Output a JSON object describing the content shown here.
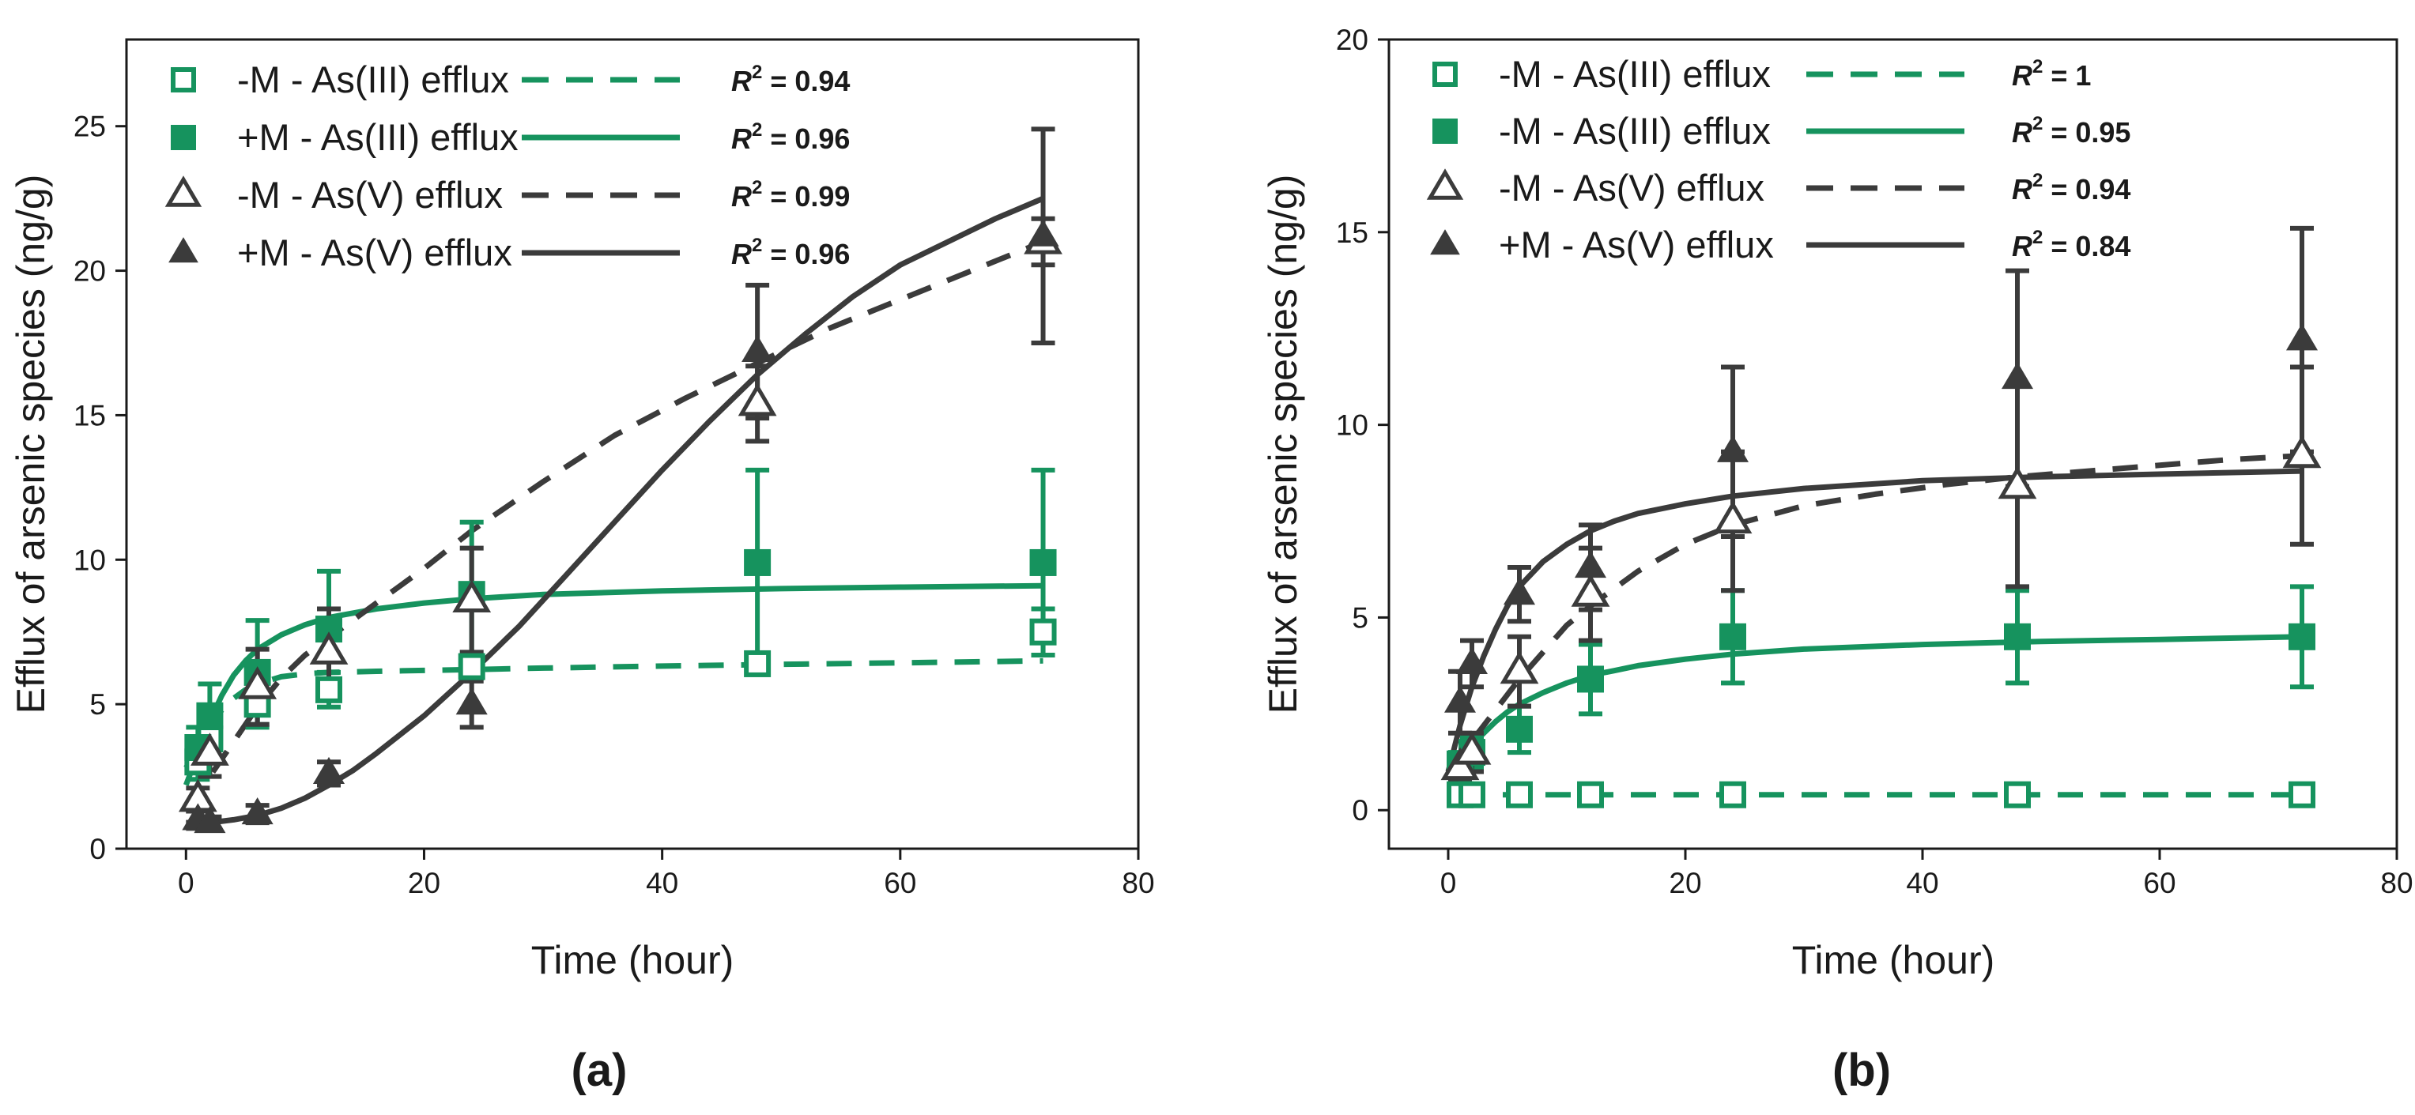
{
  "colors": {
    "green": "#16935e",
    "dark": "#3b3b3b"
  },
  "chart_data": [
    {
      "type": "scatter",
      "panel_label": "(a)",
      "xlabel": "Time (hour)",
      "ylabel": "Efflux of arsenic species (ng/g)",
      "xlim": [
        -5,
        80
      ],
      "ylim": [
        0,
        28
      ],
      "xticks": [
        0,
        20,
        40,
        60,
        80
      ],
      "yticks": [
        0,
        5,
        10,
        15,
        20,
        25
      ],
      "grid": false,
      "legend_position": "top-left",
      "series": [
        {
          "name": "-M - As(III) efflux",
          "r2_prefix": "R",
          "r2_exp": "2",
          "r2_value": " = 0.94",
          "color": "green",
          "marker": "square-open",
          "line": "dashed",
          "x": [
            1,
            2,
            6,
            12,
            24,
            48,
            72
          ],
          "y": [
            3.0,
            3.8,
            5.0,
            5.5,
            6.3,
            6.4,
            7.5
          ],
          "err": [
            0.6,
            0.6,
            0.8,
            0.6,
            0.4,
            0.2,
            0.8
          ],
          "fit_x": [
            0,
            1,
            2,
            3,
            4,
            5,
            6,
            8,
            10,
            12,
            14,
            16,
            20,
            24,
            30,
            40,
            50,
            60,
            72
          ],
          "fit_y": [
            2.8,
            3.5,
            4.2,
            4.8,
            5.2,
            5.5,
            5.7,
            5.95,
            6.05,
            6.1,
            6.12,
            6.14,
            6.17,
            6.2,
            6.25,
            6.32,
            6.38,
            6.43,
            6.5
          ]
        },
        {
          "name": "+M - As(III) efflux",
          "r2_prefix": "R",
          "r2_exp": "2",
          "r2_value": " = 0.96",
          "color": "green",
          "marker": "square-filled",
          "line": "solid",
          "x": [
            1,
            2,
            6,
            12,
            24,
            48,
            72
          ],
          "y": [
            3.5,
            4.6,
            6.1,
            7.6,
            8.8,
            9.9,
            9.9
          ],
          "err": [
            0.7,
            1.1,
            1.8,
            2.0,
            2.5,
            3.2,
            3.2
          ],
          "fit_x": [
            0,
            1,
            2,
            3,
            4,
            5,
            6,
            8,
            10,
            12,
            14,
            16,
            20,
            24,
            30,
            40,
            50,
            60,
            72
          ],
          "fit_y": [
            2.2,
            3.3,
            4.4,
            5.3,
            6.0,
            6.5,
            6.9,
            7.4,
            7.75,
            8.0,
            8.15,
            8.3,
            8.5,
            8.65,
            8.8,
            8.92,
            9.0,
            9.05,
            9.1
          ]
        },
        {
          "name": "-M - As(V) efflux",
          "r2_prefix": "R",
          "r2_exp": "2",
          "r2_value": " = 0.99",
          "color": "dark",
          "marker": "triangle-open",
          "line": "dashed",
          "x": [
            1,
            2,
            6,
            12,
            24,
            48,
            72
          ],
          "y": [
            1.7,
            3.3,
            5.6,
            6.8,
            8.6,
            15.4,
            21.0
          ],
          "err": [
            0.4,
            0.8,
            1.3,
            1.5,
            1.8,
            1.3,
            0.8
          ],
          "fit_x": [
            0,
            2,
            4,
            6,
            8,
            10,
            12,
            16,
            20,
            24,
            30,
            36,
            42,
            48,
            54,
            60,
            66,
            72
          ],
          "fit_y": [
            1.5,
            2.5,
            3.7,
            4.9,
            5.9,
            6.7,
            7.3,
            8.5,
            9.7,
            11.0,
            12.7,
            14.3,
            15.6,
            16.8,
            18.0,
            19.0,
            20.0,
            21.0
          ]
        },
        {
          "name": "+M -  As(V) efflux",
          "r2_prefix": "R",
          "r2_exp": "2",
          "r2_value": " = 0.96",
          "color": "dark",
          "marker": "triangle-filled",
          "line": "solid",
          "x": [
            1,
            2,
            6,
            12,
            24,
            48,
            72
          ],
          "y": [
            1.0,
            0.9,
            1.2,
            2.6,
            5.0,
            17.2,
            21.2
          ],
          "err": [
            0.3,
            0.2,
            0.3,
            0.4,
            0.8,
            2.3,
            3.7
          ],
          "fit_x": [
            0,
            2,
            4,
            6,
            8,
            10,
            12,
            14,
            16,
            18,
            20,
            24,
            28,
            32,
            36,
            40,
            44,
            48,
            52,
            56,
            60,
            64,
            68,
            72
          ],
          "fit_y": [
            0.9,
            0.9,
            1.0,
            1.15,
            1.4,
            1.75,
            2.2,
            2.7,
            3.3,
            3.95,
            4.6,
            6.1,
            7.7,
            9.5,
            11.3,
            13.1,
            14.8,
            16.4,
            17.8,
            19.1,
            20.2,
            21.0,
            21.8,
            22.5
          ]
        }
      ]
    },
    {
      "type": "scatter",
      "panel_label": "(b)",
      "xlabel": "Time (hour)",
      "ylabel": "Efflux of arsenic species (ng/g)",
      "xlim": [
        -5,
        80
      ],
      "ylim": [
        -1,
        20
      ],
      "xticks": [
        0,
        20,
        40,
        60,
        80
      ],
      "yticks": [
        0,
        5,
        10,
        15,
        20
      ],
      "grid": false,
      "legend_position": "top-left",
      "series": [
        {
          "name": "-M - As(III) efflux",
          "r2_prefix": "R",
          "r2_exp": "2",
          "r2_value": " = 1",
          "color": "green",
          "marker": "square-open",
          "line": "dashed",
          "x": [
            1,
            2,
            6,
            12,
            24,
            48,
            72
          ],
          "y": [
            0.4,
            0.4,
            0.4,
            0.4,
            0.4,
            0.4,
            0.4
          ],
          "err": [
            0.05,
            0.05,
            0.05,
            0.05,
            0.05,
            0.05,
            0.05
          ],
          "fit_x": [
            1,
            72
          ],
          "fit_y": [
            0.4,
            0.4
          ]
        },
        {
          "name": "-M - As(III) efflux",
          "r2_prefix": "R",
          "r2_exp": "2",
          "r2_value": " = 0.95",
          "color": "green",
          "marker": "square-filled",
          "line": "solid",
          "x": [
            1,
            2,
            6,
            12,
            24,
            48,
            72
          ],
          "y": [
            1.2,
            1.5,
            2.1,
            3.4,
            4.5,
            4.5,
            4.5
          ],
          "err": [
            0.3,
            0.4,
            0.6,
            0.9,
            1.2,
            1.2,
            1.3
          ],
          "fit_x": [
            0,
            1,
            2,
            3,
            4,
            5,
            6,
            8,
            10,
            12,
            14,
            16,
            20,
            24,
            30,
            40,
            50,
            60,
            72
          ],
          "fit_y": [
            1.0,
            1.35,
            1.7,
            2.0,
            2.3,
            2.55,
            2.75,
            3.05,
            3.3,
            3.5,
            3.62,
            3.75,
            3.92,
            4.05,
            4.18,
            4.3,
            4.38,
            4.43,
            4.5
          ]
        },
        {
          "name": "-M - As(V) efflux",
          "r2_prefix": "R",
          "r2_exp": "2",
          "r2_value": " = 0.94",
          "color": "dark",
          "marker": "triangle-open",
          "line": "dashed",
          "x": [
            1,
            2,
            6,
            12,
            24,
            48,
            72
          ],
          "y": [
            1.1,
            1.5,
            3.6,
            5.6,
            7.5,
            8.4,
            9.2
          ],
          "err": [
            0.3,
            0.5,
            0.9,
            1.2,
            1.8,
            2.6,
            2.3
          ],
          "fit_x": [
            0,
            2,
            4,
            6,
            8,
            10,
            12,
            16,
            20,
            24,
            30,
            36,
            42,
            48,
            54,
            60,
            66,
            72
          ],
          "fit_y": [
            1.0,
            1.8,
            2.6,
            3.4,
            4.1,
            4.8,
            5.3,
            6.2,
            6.9,
            7.4,
            7.9,
            8.2,
            8.45,
            8.65,
            8.8,
            8.95,
            9.1,
            9.2
          ]
        },
        {
          "name": "+M - As(V) efflux",
          "r2_prefix": "R",
          "r2_exp": "2",
          "r2_value": " = 0.84",
          "color": "dark",
          "marker": "triangle-filled",
          "line": "solid",
          "x": [
            1,
            2,
            6,
            12,
            24,
            48,
            72
          ],
          "y": [
            2.8,
            3.8,
            5.6,
            6.3,
            9.3,
            11.2,
            12.2
          ],
          "err": [
            0.8,
            0.6,
            0.7,
            1.1,
            2.2,
            2.8,
            2.9
          ],
          "fit_x": [
            0,
            1,
            2,
            3,
            4,
            5,
            6,
            8,
            10,
            12,
            14,
            16,
            20,
            24,
            30,
            40,
            50,
            60,
            72
          ],
          "fit_y": [
            1.0,
            2.2,
            3.2,
            4.0,
            4.7,
            5.3,
            5.8,
            6.45,
            6.9,
            7.25,
            7.5,
            7.7,
            7.95,
            8.15,
            8.35,
            8.55,
            8.65,
            8.72,
            8.8
          ]
        }
      ]
    }
  ]
}
